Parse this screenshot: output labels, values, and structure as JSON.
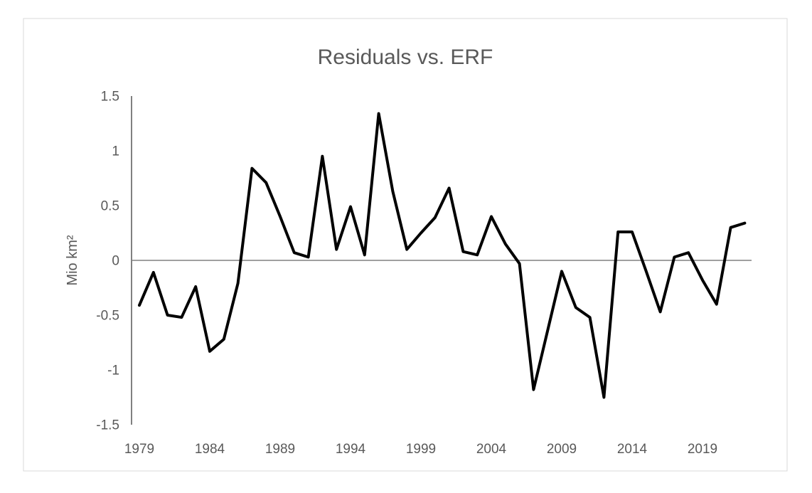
{
  "chart_data": {
    "type": "line",
    "title": "Residuals vs. ERF",
    "ylabel": "Mio km²",
    "xlabel": "",
    "series_name": "Residuals",
    "x": [
      1979,
      1980,
      1981,
      1982,
      1983,
      1984,
      1985,
      1986,
      1987,
      1988,
      1989,
      1990,
      1991,
      1992,
      1993,
      1994,
      1995,
      1996,
      1997,
      1998,
      1999,
      2000,
      2001,
      2002,
      2003,
      2004,
      2005,
      2006,
      2007,
      2008,
      2009,
      2010,
      2011,
      2012,
      2013,
      2014,
      2015,
      2016,
      2017,
      2018,
      2019,
      2020,
      2021,
      2022
    ],
    "values": [
      -0.41,
      -0.11,
      -0.5,
      -0.52,
      -0.24,
      -0.83,
      -0.72,
      -0.21,
      0.84,
      0.71,
      0.4,
      0.07,
      0.03,
      0.95,
      0.1,
      0.49,
      0.05,
      1.34,
      0.63,
      0.1,
      0.25,
      0.39,
      0.66,
      0.08,
      0.05,
      0.4,
      0.15,
      -0.03,
      -1.18,
      -0.64,
      -0.1,
      -0.43,
      -0.52,
      -1.25,
      0.26,
      0.26,
      -0.1,
      -0.47,
      0.03,
      0.07,
      -0.18,
      -0.4,
      0.3,
      0.34
    ],
    "xticks": [
      1979,
      1984,
      1989,
      1994,
      1999,
      2004,
      2009,
      2014,
      2019
    ],
    "yticks": [
      1.5,
      1,
      0.5,
      0,
      -0.5,
      -1,
      -1.5
    ],
    "xlim": [
      1979,
      2022
    ],
    "ylim": [
      -1.5,
      1.5
    ],
    "grid": "none",
    "legend": "none",
    "line_color": "#000000",
    "axis_color": "#808080",
    "text_color": "#595959",
    "border_color": "#d9d9d9",
    "background_color": "#ffffff"
  }
}
